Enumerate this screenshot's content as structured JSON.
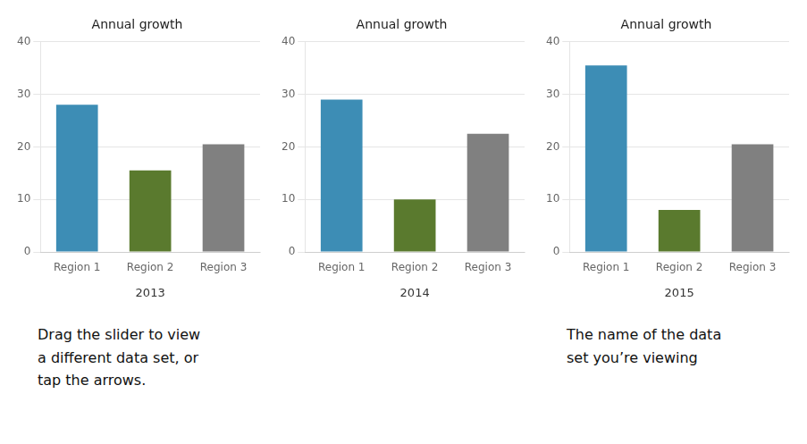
{
  "chart_data": [
    {
      "type": "bar",
      "title": "Annual growth",
      "xlabel": "2013",
      "categories": [
        "Region 1",
        "Region 2",
        "Region 3"
      ],
      "values": [
        28,
        15.5,
        20.5
      ],
      "colors": [
        "#3d8db5",
        "#5a7a2e",
        "#808080"
      ],
      "ylim": [
        0,
        40
      ],
      "yticks": [
        0,
        10,
        20,
        30,
        40
      ],
      "grid": true,
      "annotation": "Drag the slider to view\na different data set, or\ntap the arrows."
    },
    {
      "type": "bar",
      "title": "Annual growth",
      "xlabel": "2014",
      "categories": [
        "Region 1",
        "Region 2",
        "Region 3"
      ],
      "values": [
        29,
        10,
        22.5
      ],
      "colors": [
        "#3d8db5",
        "#5a7a2e",
        "#808080"
      ],
      "ylim": [
        0,
        40
      ],
      "yticks": [
        0,
        10,
        20,
        30,
        40
      ],
      "grid": true
    },
    {
      "type": "bar",
      "title": "Annual growth",
      "xlabel": "2015",
      "categories": [
        "Region 1",
        "Region 2",
        "Region 3"
      ],
      "values": [
        35.5,
        8,
        20.5
      ],
      "colors": [
        "#3d8db5",
        "#5a7a2e",
        "#808080"
      ],
      "ylim": [
        0,
        40
      ],
      "yticks": [
        0,
        10,
        20,
        30,
        40
      ],
      "grid": true,
      "annotation": "The name of the data\nset you’re viewing"
    }
  ]
}
